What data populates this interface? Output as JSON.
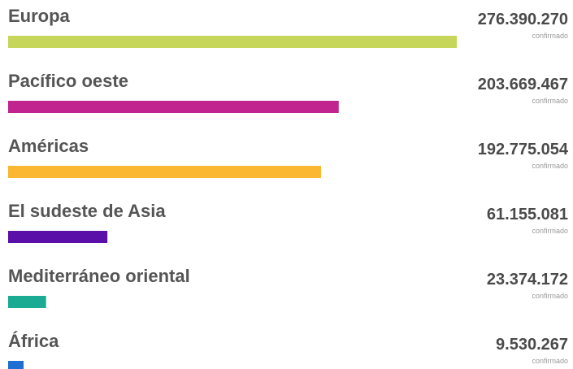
{
  "chart_data": {
    "type": "bar",
    "orientation": "horizontal",
    "categories": [
      "Europa",
      "Pacífico oeste",
      "Américas",
      "El sudeste de Asia",
      "Mediterráneo oriental",
      "África"
    ],
    "values": [
      276390270,
      203669467,
      192775054,
      61155081,
      23374172,
      9530267
    ],
    "value_labels": [
      "276.390.270",
      "203.669.467",
      "192.775.054",
      "61.155.081",
      "23.374.172",
      "9.530.267"
    ],
    "value_caption": "confirmado",
    "colors": [
      "#c6d65b",
      "#c1248f",
      "#fbb632",
      "#5a10a8",
      "#1bab92",
      "#1e6fd1"
    ]
  }
}
